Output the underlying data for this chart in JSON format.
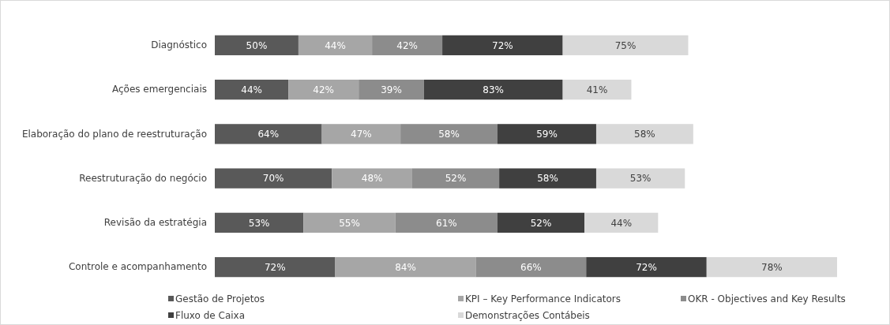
{
  "chart_data": {
    "type": "bar",
    "orientation": "horizontal",
    "stacked": true,
    "legend": "bottom",
    "categories": [
      "Diagnóstico",
      "Ações emergenciais",
      "Elaboração do plano de reestruturação",
      "Reestruturação do negócio",
      "Revisão da estratégia",
      "Controle e acompanhamento"
    ],
    "series": [
      {
        "name": "Gestão de Projetos",
        "color": "#595959",
        "values": [
          50,
          44,
          64,
          70,
          53,
          72
        ],
        "value_labels": [
          "50%",
          "44%",
          "64%",
          "70%",
          "53%",
          "72%"
        ]
      },
      {
        "name": "KPI – Key Performance Indicators",
        "color": "#a6a6a6",
        "values": [
          44,
          42,
          47,
          48,
          55,
          84
        ],
        "value_labels": [
          "44%",
          "42%",
          "47%",
          "48%",
          "55%",
          "84%"
        ]
      },
      {
        "name": "OKR - Objectives and Key Results",
        "color": "#8c8c8c",
        "values": [
          42,
          39,
          58,
          52,
          61,
          66
        ],
        "value_labels": [
          "42%",
          "39%",
          "58%",
          "52%",
          "61%",
          "66%"
        ]
      },
      {
        "name": "Fluxo de Caixa",
        "color": "#404040",
        "values": [
          72,
          83,
          59,
          58,
          52,
          72
        ],
        "value_labels": [
          "72%",
          "83%",
          "59%",
          "58%",
          "52%",
          "72%"
        ]
      },
      {
        "name": "Demonstrações Contábeis",
        "color": "#d9d9d9",
        "values": [
          75,
          41,
          58,
          53,
          44,
          78
        ],
        "value_labels": [
          "75%",
          "41%",
          "58%",
          "53%",
          "44%",
          "78%"
        ]
      }
    ]
  }
}
